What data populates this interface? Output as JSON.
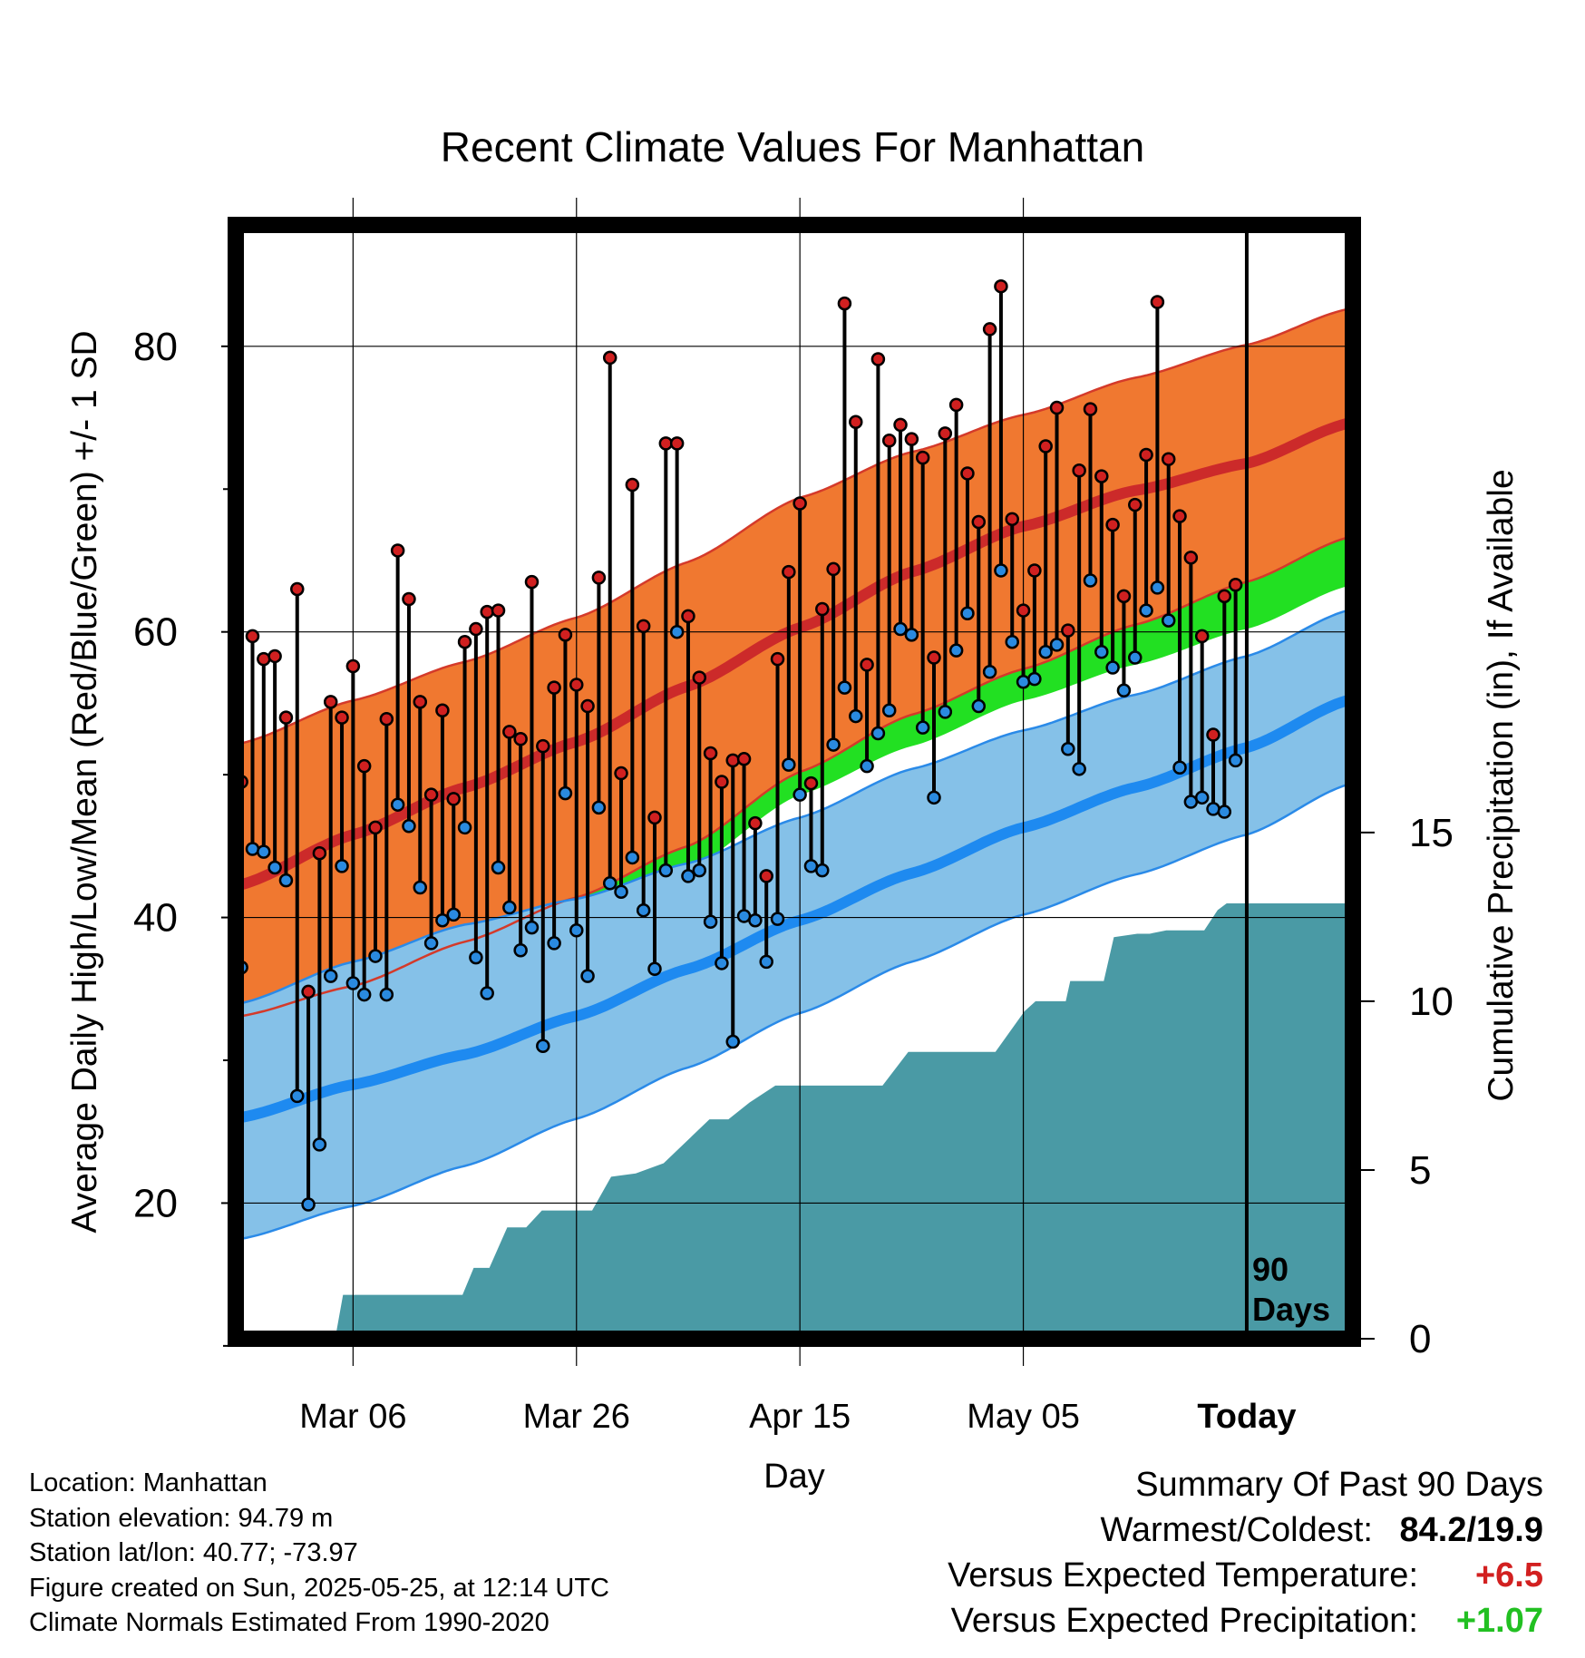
{
  "title": "Recent Climate Values For Manhattan",
  "colors": {
    "high_band": "#f07830",
    "high_mean": "#cc2a2a",
    "high_edge": "#d43a2a",
    "low_band": "#85c1e8",
    "low_mean": "#1e8af0",
    "low_edge": "#2a8ae8",
    "mean_band": "#22e022",
    "precip": "#4a9aa5",
    "high_dot": "#d02020",
    "low_dot": "#2a8ae0",
    "positive_temp": "#d22020",
    "positive_precip": "#22c022"
  },
  "chart_data": {
    "type": "line",
    "title": "Recent Climate Values For Manhattan",
    "xlabel": "Day",
    "ylabel": "Average Daily High/Low/Mean (Red/Blue/Green) +/- 1 SD",
    "y2label": "Cumulative Precipitation (in), If Available",
    "x_ticks": [
      {
        "label": "Mar 06",
        "day": 10,
        "bold": false
      },
      {
        "label": "Mar 26",
        "day": 30,
        "bold": false
      },
      {
        "label": "Apr 15",
        "day": 50,
        "bold": false
      },
      {
        "label": "May 05",
        "day": 70,
        "bold": false
      },
      {
        "label": "Today",
        "day": 90,
        "bold": true
      }
    ],
    "xlim": [
      -0.5,
      99.5
    ],
    "ylim": [
      10.5,
      88.5
    ],
    "y_ticks": [
      20,
      40,
      60,
      80
    ],
    "y_minor_ticks": [
      10,
      30,
      50,
      70
    ],
    "y2lim": [
      0,
      33
    ],
    "y2_ticks": [
      0,
      5,
      10,
      15
    ],
    "today_day": 90,
    "today_label_line1": "90",
    "today_label_line2": "Days",
    "grid": true,
    "normals": {
      "days": [
        0,
        10,
        20,
        30,
        40,
        50,
        60,
        70,
        80,
        90,
        99
      ],
      "high_mean": [
        42.3,
        45.8,
        49.1,
        52.3,
        56.2,
        60.3,
        64.2,
        67.4,
        69.9,
        71.8,
        74.6
      ],
      "high_upper": [
        52.2,
        55.2,
        57.9,
        61.0,
        64.9,
        69.4,
        72.6,
        75.2,
        77.8,
        80.1,
        82.6
      ],
      "high_lower": [
        33.1,
        35.2,
        38.3,
        41.4,
        45.0,
        50.2,
        54.2,
        57.4,
        60.5,
        63.5,
        66.6
      ],
      "low_mean": [
        26.0,
        28.3,
        30.4,
        33.1,
        36.4,
        39.8,
        43.1,
        46.3,
        49.1,
        51.9,
        55.2
      ],
      "low_upper": [
        34.0,
        36.9,
        39.5,
        41.3,
        43.8,
        47.0,
        50.4,
        53.1,
        55.6,
        58.3,
        61.5
      ],
      "low_lower": [
        17.5,
        19.8,
        22.6,
        25.9,
        29.5,
        33.3,
        36.9,
        40.2,
        43.0,
        45.8,
        49.3
      ],
      "mean_mean": [
        34.1,
        37.0,
        39.5,
        42.4,
        46.2,
        50.5,
        53.6,
        56.8,
        59.3,
        61.8,
        64.8
      ]
    },
    "series": [
      {
        "name": "High",
        "values": [
          49.5,
          59.7,
          58.1,
          58.3,
          54.0,
          63.0,
          34.8,
          44.5,
          55.1,
          54.0,
          57.6,
          50.6,
          46.3,
          53.9,
          65.7,
          62.3,
          55.1,
          48.6,
          54.5,
          48.3,
          59.3,
          60.2,
          61.4,
          61.5,
          53.0,
          52.5,
          63.5,
          52.0,
          56.1,
          59.8,
          56.3,
          54.8,
          63.8,
          79.2,
          50.1,
          70.3,
          60.4,
          47.0,
          73.2,
          73.2,
          61.1,
          56.8,
          51.5,
          49.5,
          51.0,
          51.1,
          46.6,
          42.9,
          58.1,
          64.2,
          69.0,
          49.4,
          61.6,
          64.4,
          83.0,
          74.7,
          57.7,
          79.1,
          73.4,
          74.5,
          73.5,
          72.2,
          58.2,
          73.9,
          75.9,
          71.1,
          67.7,
          81.2,
          84.2,
          67.9,
          61.5,
          64.3,
          73.0,
          75.7,
          60.1,
          71.3,
          75.6,
          70.9,
          67.5,
          62.5,
          68.9,
          72.4,
          83.1,
          72.1,
          68.1,
          65.2,
          59.7,
          52.8,
          62.5,
          63.3
        ]
      },
      {
        "name": "Low",
        "values": [
          36.5,
          44.8,
          44.6,
          43.5,
          42.6,
          27.5,
          19.9,
          24.1,
          35.9,
          43.6,
          35.4,
          34.6,
          37.3,
          34.6,
          47.9,
          46.4,
          42.1,
          38.2,
          39.8,
          40.2,
          46.3,
          37.2,
          34.7,
          43.5,
          40.7,
          37.7,
          39.3,
          31.0,
          38.2,
          48.7,
          39.1,
          35.9,
          47.7,
          42.4,
          41.8,
          44.2,
          40.5,
          36.4,
          43.3,
          60.0,
          42.9,
          43.3,
          39.7,
          36.8,
          31.3,
          40.1,
          39.8,
          36.9,
          39.9,
          50.7,
          48.6,
          43.6,
          43.3,
          52.1,
          56.1,
          54.1,
          50.6,
          52.9,
          54.5,
          60.2,
          59.8,
          53.3,
          48.4,
          54.4,
          58.7,
          61.3,
          54.8,
          57.2,
          64.3,
          59.3,
          56.5,
          56.7,
          58.6,
          59.1,
          51.8,
          50.4,
          63.6,
          58.6,
          57.5,
          55.9,
          58.2,
          61.5,
          63.1,
          60.8,
          50.5,
          48.1,
          48.4,
          47.6,
          47.4,
          51.0
        ]
      },
      {
        "name": "Cumulative Precipitation",
        "days": [
          0,
          8.4,
          9.1,
          19.8,
          20.8,
          22.2,
          23.8,
          25.5,
          26.9,
          31.4,
          33.1,
          35.3,
          37.8,
          41.9,
          43.6,
          45.5,
          47.8,
          49.3,
          57.4,
          59.7,
          61.2,
          67.5,
          68.8,
          70.1,
          71.1,
          73.8,
          74.2,
          77.2,
          78.1,
          80.2,
          81.3,
          82.8,
          86.2,
          87.4,
          88.2,
          99.3
        ],
        "values": [
          0,
          0,
          1.3,
          1.3,
          2.1,
          2.1,
          3.3,
          3.3,
          3.8,
          3.8,
          4.8,
          4.9,
          5.2,
          6.5,
          6.5,
          7.0,
          7.5,
          7.5,
          7.5,
          8.5,
          8.5,
          8.5,
          9.1,
          9.7,
          10.0,
          10.0,
          10.6,
          10.6,
          11.9,
          12.0,
          12.0,
          12.1,
          12.1,
          12.7,
          12.9,
          12.9
        ]
      }
    ]
  },
  "footer_left": [
    "Location: Manhattan",
    "Station elevation: 94.79 m",
    "Station lat/lon: 40.77; -73.97",
    "Figure created on Sun, 2025-05-25, at 12:14 UTC",
    "Climate Normals Estimated From 1990-2020"
  ],
  "summary": {
    "heading": "Summary Of Past 90 Days",
    "warm_cold_label": "Warmest/Coldest:",
    "warm_cold_value": "84.2/19.9",
    "temp_label": "Versus Expected Temperature:",
    "temp_value": "+6.5",
    "precip_label": "Versus Expected Precipitation:",
    "precip_value": "+1.07"
  }
}
